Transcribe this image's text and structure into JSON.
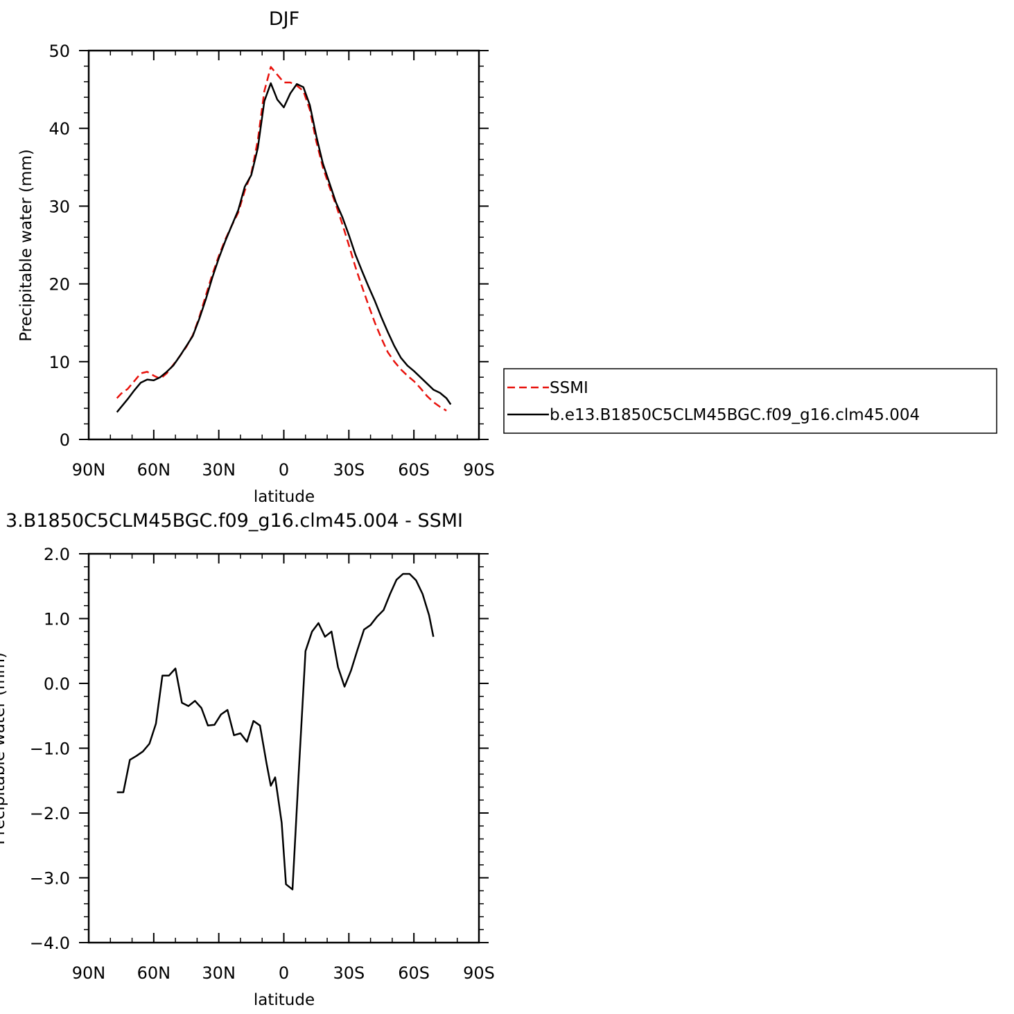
{
  "chart_data": [
    {
      "type": "line",
      "title": "DJF",
      "xlabel": "latitude",
      "ylabel": "Precipitable water (mm)",
      "xlim": [
        90,
        -90
      ],
      "ylim": [
        0,
        50
      ],
      "x_ticks": [
        {
          "value": 90,
          "label": "90N"
        },
        {
          "value": 60,
          "label": "60N"
        },
        {
          "value": 30,
          "label": "30N"
        },
        {
          "value": 0,
          "label": "0"
        },
        {
          "value": -30,
          "label": "30S"
        },
        {
          "value": -60,
          "label": "60S"
        },
        {
          "value": -90,
          "label": "90S"
        }
      ],
      "y_ticks": [
        {
          "value": 0,
          "label": "0"
        },
        {
          "value": 10,
          "label": "10"
        },
        {
          "value": 20,
          "label": "20"
        },
        {
          "value": 30,
          "label": "30"
        },
        {
          "value": 40,
          "label": "40"
        },
        {
          "value": 50,
          "label": "50"
        }
      ],
      "legend": {
        "placement": "right",
        "entries": [
          "SSMI",
          "b.e13.B1850C5CLM45BGC.f09_g16.clm45.004"
        ]
      },
      "series": [
        {
          "name": "SSMI",
          "color": "#e8120c",
          "dash": true,
          "x": [
            77,
            75,
            72,
            69,
            66,
            63,
            60,
            57,
            54,
            51,
            48,
            45,
            42,
            39,
            36,
            33,
            30,
            27,
            24,
            21,
            18,
            15,
            12,
            9,
            6,
            3,
            0,
            -3,
            -6,
            -9,
            -12,
            -15,
            -18,
            -21,
            -24,
            -27,
            -30,
            -33,
            -36,
            -39,
            -42,
            -45,
            -48,
            -51,
            -54,
            -57,
            -60,
            -63,
            -66,
            -69,
            -72,
            -75
          ],
          "y": [
            5.3,
            5.9,
            6.5,
            7.5,
            8.5,
            8.7,
            8.2,
            7.8,
            8.5,
            9.6,
            10.7,
            11.9,
            13.4,
            15.7,
            18.5,
            21.2,
            23.6,
            25.7,
            27.5,
            29.2,
            32.0,
            34.2,
            38.5,
            44.8,
            47.9,
            46.9,
            45.9,
            45.9,
            45.5,
            44.8,
            42.4,
            38.3,
            35.0,
            32.5,
            30.2,
            27.7,
            25.0,
            22.2,
            19.7,
            17.3,
            15.0,
            13.0,
            11.2,
            10.0,
            9.0,
            8.2,
            7.5,
            6.6,
            5.6,
            4.8,
            4.2,
            3.7
          ]
        },
        {
          "name": "b.e13.B1850C5CLM45BGC.f09_g16.clm45.004",
          "color": "#000000",
          "dash": false,
          "x": [
            77,
            72,
            69,
            66,
            63,
            60,
            57,
            54,
            51,
            48,
            45,
            42,
            39,
            36,
            33,
            30,
            27,
            24,
            21,
            18,
            15,
            12,
            9,
            6,
            3,
            0,
            -3,
            -6,
            -9,
            -12,
            -15,
            -18,
            -21,
            -24,
            -27,
            -30,
            -33,
            -36,
            -39,
            -42,
            -45,
            -48,
            -51,
            -54,
            -57,
            -60,
            -63,
            -66,
            -69,
            -72,
            -75,
            -77
          ],
          "y": [
            3.5,
            5.2,
            6.3,
            7.3,
            7.7,
            7.6,
            8.0,
            8.7,
            9.5,
            10.7,
            12.0,
            13.3,
            15.5,
            18.0,
            20.8,
            23.3,
            25.5,
            27.5,
            29.5,
            32.5,
            34.0,
            37.5,
            43.5,
            45.8,
            43.7,
            42.7,
            44.5,
            45.7,
            45.3,
            43.0,
            39.0,
            35.5,
            33.0,
            30.5,
            28.6,
            26.3,
            23.8,
            21.7,
            19.7,
            17.8,
            15.7,
            13.8,
            12.0,
            10.5,
            9.5,
            8.8,
            8.0,
            7.2,
            6.4,
            6.0,
            5.3,
            4.5
          ]
        }
      ]
    },
    {
      "type": "line",
      "title": "3.B1850C5CLM45BGC.f09_g16.clm45.004 - SSMI",
      "xlabel": "latitude",
      "ylabel": "Precipitable water (mm)",
      "xlim": [
        90,
        -90
      ],
      "ylim": [
        -4.0,
        2.0
      ],
      "x_ticks": [
        {
          "value": 90,
          "label": "90N"
        },
        {
          "value": 60,
          "label": "60N"
        },
        {
          "value": 30,
          "label": "30N"
        },
        {
          "value": 0,
          "label": "0"
        },
        {
          "value": -30,
          "label": "30S"
        },
        {
          "value": -60,
          "label": "60S"
        },
        {
          "value": -90,
          "label": "90S"
        }
      ],
      "y_ticks": [
        {
          "value": -4.0,
          "label": "−4.0"
        },
        {
          "value": -3.0,
          "label": "−3.0"
        },
        {
          "value": -2.0,
          "label": "−2.0"
        },
        {
          "value": -1.0,
          "label": "−1.0"
        },
        {
          "value": 0.0,
          "label": "0.0"
        },
        {
          "value": 1.0,
          "label": "1.0"
        },
        {
          "value": 2.0,
          "label": "2.0"
        }
      ],
      "series": [
        {
          "color": "#000000",
          "dash": false,
          "x": [
            77,
            74,
            71,
            68,
            65,
            62,
            59,
            56,
            53,
            50,
            47,
            44,
            41,
            38,
            35,
            32,
            29,
            26,
            23,
            20,
            17,
            14,
            11,
            8,
            6,
            4,
            1,
            -1,
            -4,
            -7,
            -10,
            -13,
            -16,
            -19,
            -22,
            -25,
            -28,
            -31,
            -34,
            -37,
            -40,
            -43,
            -46,
            -49,
            -52,
            -55,
            -58,
            -61,
            -64,
            -67,
            -69
          ],
          "y": [
            -1.68,
            -1.68,
            -1.18,
            -1.12,
            -1.05,
            -0.93,
            -0.62,
            0.12,
            0.12,
            0.23,
            -0.3,
            -0.35,
            -0.27,
            -0.38,
            -0.65,
            -0.64,
            -0.48,
            -0.41,
            -0.8,
            -0.77,
            -0.9,
            -0.58,
            -0.65,
            -1.23,
            -1.58,
            -1.45,
            -2.15,
            -3.1,
            -3.18,
            -1.3,
            0.5,
            0.8,
            0.93,
            0.72,
            0.8,
            0.25,
            -0.05,
            0.2,
            0.52,
            0.83,
            0.9,
            1.03,
            1.13,
            1.38,
            1.6,
            1.69,
            1.69,
            1.59,
            1.38,
            1.05,
            0.72
          ]
        }
      ]
    }
  ]
}
